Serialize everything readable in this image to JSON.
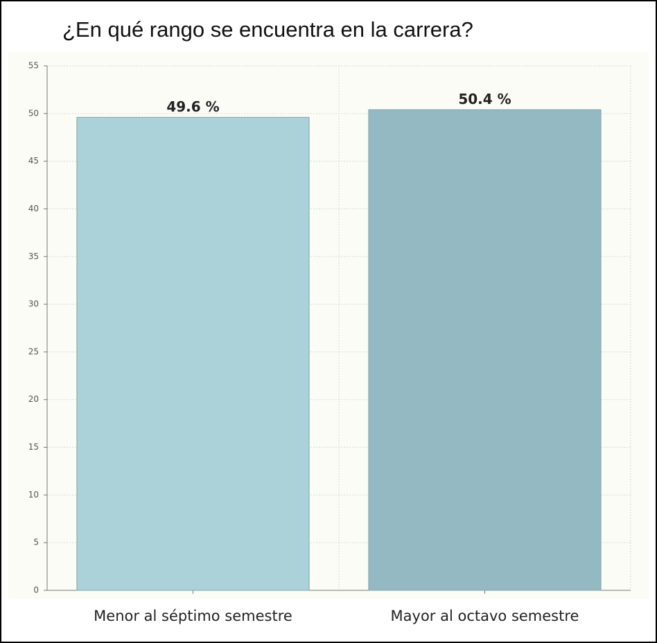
{
  "chart_data": {
    "type": "bar",
    "title": "¿En qué rango se encuentra en la carrera?",
    "categories": [
      "Menor al séptimo semestre",
      "Mayor al octavo semestre"
    ],
    "values": [
      49.6,
      50.4
    ],
    "value_labels": [
      "49.6 %",
      "50.4 %"
    ],
    "colors": [
      "#abd1d9",
      "#95b9c2"
    ],
    "ylim": [
      0,
      55
    ],
    "yticks": [
      0,
      5,
      10,
      15,
      20,
      25,
      30,
      35,
      40,
      45,
      50,
      55
    ],
    "grid": true
  }
}
